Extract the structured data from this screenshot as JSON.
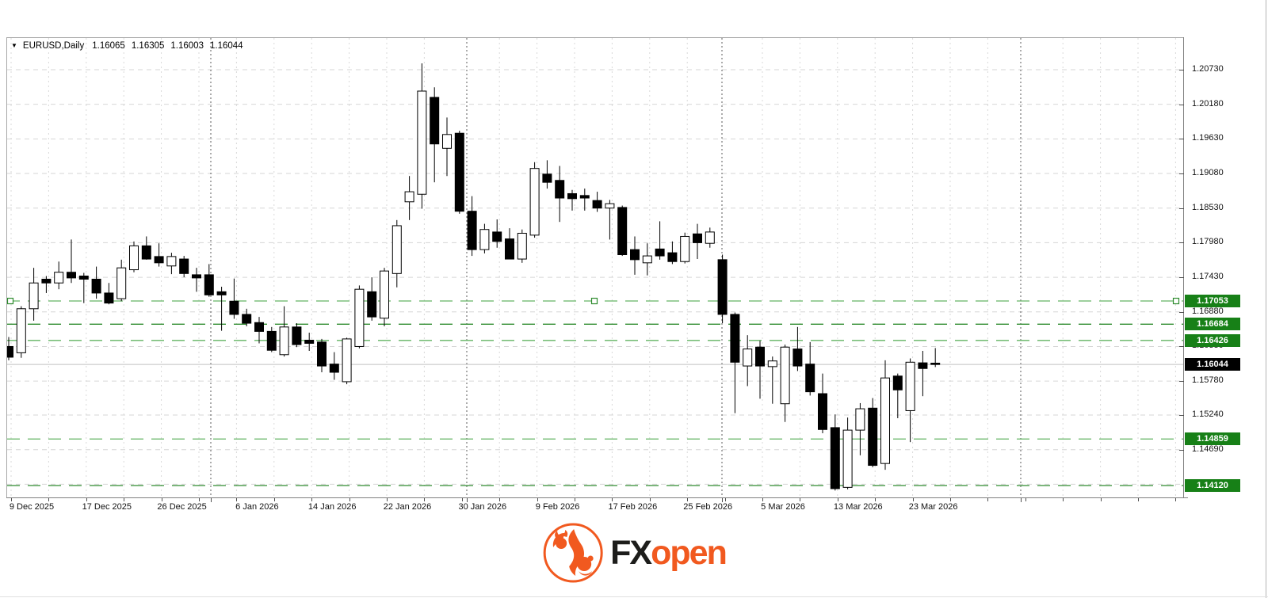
{
  "header": {
    "dropdown_icon": "▼",
    "symbol": "EURUSD,Daily",
    "open": "1.16065",
    "high": "1.16305",
    "low": "1.16003",
    "close": "1.16044"
  },
  "chart_data": {
    "type": "candlestick",
    "symbol": "EURUSD",
    "timeframe": "Daily",
    "title": "EURUSD,Daily",
    "grid": true,
    "ylim": [
      1.1393,
      1.2123
    ],
    "price_axis_ticks": [
      "1.20730",
      "1.20180",
      "1.19630",
      "1.19080",
      "1.18530",
      "1.17980",
      "1.17430",
      "1.16880",
      "1.16330",
      "1.15780",
      "1.15240",
      "1.14690"
    ],
    "date_axis_labels": [
      "9 Dec 2025",
      "17 Dec 2025",
      "26 Dec 2025",
      "6 Jan 2026",
      "14 Jan 2026",
      "22 Jan 2026",
      "30 Jan 2026",
      "9 Feb 2026",
      "17 Feb 2026",
      "25 Feb 2026",
      "5 Mar 2026",
      "13 Mar 2026",
      "23 Mar 2026"
    ],
    "horizontal_levels": [
      {
        "price": "1.17053",
        "style": "light",
        "selected": true
      },
      {
        "price": "1.16684",
        "style": "dark",
        "selected": false
      },
      {
        "price": "1.16426",
        "style": "light",
        "selected": false
      },
      {
        "price": "1.14859",
        "style": "light",
        "selected": false
      },
      {
        "price": "1.14120",
        "style": "dark",
        "selected": false
      }
    ],
    "current_price": "1.16044",
    "candles_ohlc": [
      [
        1.1633,
        1.1648,
        1.1611,
        1.1616
      ],
      [
        1.1623,
        1.1697,
        1.1615,
        1.1693
      ],
      [
        1.1693,
        1.1758,
        1.1674,
        1.1734
      ],
      [
        1.174,
        1.1745,
        1.1718,
        1.1734
      ],
      [
        1.1734,
        1.1768,
        1.1724,
        1.1751
      ],
      [
        1.1751,
        1.1803,
        1.1734,
        1.1742
      ],
      [
        1.1745,
        1.175,
        1.1702,
        1.174
      ],
      [
        1.174,
        1.176,
        1.1709,
        1.1718
      ],
      [
        1.1718,
        1.1734,
        1.17,
        1.1702
      ],
      [
        1.1709,
        1.1771,
        1.1705,
        1.1758
      ],
      [
        1.1755,
        1.18,
        1.1751,
        1.1793
      ],
      [
        1.1793,
        1.1808,
        1.1771,
        1.1772
      ],
      [
        1.1776,
        1.1797,
        1.176,
        1.1766
      ],
      [
        1.1761,
        1.1782,
        1.1748,
        1.1776
      ],
      [
        1.1772,
        1.1777,
        1.1743,
        1.1749
      ],
      [
        1.1747,
        1.1758,
        1.172,
        1.1742
      ],
      [
        1.1747,
        1.1764,
        1.1712,
        1.1715
      ],
      [
        1.172,
        1.1728,
        1.1658,
        1.1715
      ],
      [
        1.1705,
        1.1741,
        1.1677,
        1.1684
      ],
      [
        1.1684,
        1.1693,
        1.1665,
        1.167
      ],
      [
        1.1671,
        1.168,
        1.1638,
        1.1657
      ],
      [
        1.1657,
        1.1664,
        1.1624,
        1.1627
      ],
      [
        1.162,
        1.1697,
        1.1617,
        1.1664
      ],
      [
        1.1664,
        1.167,
        1.1632,
        1.1636
      ],
      [
        1.1643,
        1.1655,
        1.1626,
        1.1638
      ],
      [
        1.164,
        1.1645,
        1.1592,
        1.1602
      ],
      [
        1.1605,
        1.1624,
        1.158,
        1.1592
      ],
      [
        1.1577,
        1.1647,
        1.1573,
        1.1645
      ],
      [
        1.1633,
        1.173,
        1.163,
        1.1724
      ],
      [
        1.172,
        1.1743,
        1.1674,
        1.168
      ],
      [
        1.1678,
        1.1758,
        1.1665,
        1.1753
      ],
      [
        1.1749,
        1.1834,
        1.1727,
        1.1825
      ],
      [
        1.1863,
        1.1904,
        1.1834,
        1.1879
      ],
      [
        1.1875,
        1.2083,
        1.1852,
        1.2039
      ],
      [
        1.2029,
        1.2045,
        1.1894,
        1.1955
      ],
      [
        1.1948,
        1.1997,
        1.1904,
        1.197
      ],
      [
        1.1972,
        1.1976,
        1.1844,
        1.1848
      ],
      [
        1.1848,
        1.1872,
        1.1777,
        1.1787
      ],
      [
        1.1787,
        1.1828,
        1.1781,
        1.1819
      ],
      [
        1.1815,
        1.1835,
        1.179,
        1.18
      ],
      [
        1.1804,
        1.1821,
        1.1772,
        1.1772
      ],
      [
        1.1772,
        1.1819,
        1.1766,
        1.1813
      ],
      [
        1.181,
        1.1926,
        1.1806,
        1.1916
      ],
      [
        1.1907,
        1.1929,
        1.1884,
        1.1894
      ],
      [
        1.1897,
        1.192,
        1.1831,
        1.1869
      ],
      [
        1.1876,
        1.1882,
        1.1849,
        1.1868
      ],
      [
        1.1873,
        1.1884,
        1.1849,
        1.1869
      ],
      [
        1.1865,
        1.1879,
        1.1847,
        1.1853
      ],
      [
        1.1853,
        1.1866,
        1.1803,
        1.186
      ],
      [
        1.1854,
        1.1857,
        1.1777,
        1.1779
      ],
      [
        1.1787,
        1.1808,
        1.1747,
        1.1771
      ],
      [
        1.1766,
        1.1797,
        1.1746,
        1.1777
      ],
      [
        1.1788,
        1.1832,
        1.1771,
        1.1777
      ],
      [
        1.1782,
        1.18,
        1.1764,
        1.1768
      ],
      [
        1.1768,
        1.1814,
        1.1765,
        1.1808
      ],
      [
        1.1812,
        1.1828,
        1.1772,
        1.1798
      ],
      [
        1.1797,
        1.1822,
        1.179,
        1.1815
      ],
      [
        1.1771,
        1.1779,
        1.167,
        1.1684
      ],
      [
        1.1684,
        1.1687,
        1.1527,
        1.1608
      ],
      [
        1.1602,
        1.1651,
        1.157,
        1.1629
      ],
      [
        1.1632,
        1.1642,
        1.155,
        1.1602
      ],
      [
        1.1601,
        1.1617,
        1.1542,
        1.161
      ],
      [
        1.1542,
        1.1636,
        1.1513,
        1.1632
      ],
      [
        1.1629,
        1.1664,
        1.1594,
        1.1602
      ],
      [
        1.1605,
        1.164,
        1.1555,
        1.1561
      ],
      [
        1.1558,
        1.159,
        1.1495,
        1.1501
      ],
      [
        1.1504,
        1.1525,
        1.1404,
        1.1407
      ],
      [
        1.1409,
        1.152,
        1.1406,
        1.15
      ],
      [
        1.15,
        1.1543,
        1.146,
        1.1534
      ],
      [
        1.1535,
        1.1551,
        1.1441,
        1.1444
      ],
      [
        1.1447,
        1.1611,
        1.1437,
        1.1583
      ],
      [
        1.1586,
        1.159,
        1.1519,
        1.1564
      ],
      [
        1.1531,
        1.1614,
        1.1481,
        1.1608
      ],
      [
        1.1607,
        1.1626,
        1.1554,
        1.1598
      ],
      [
        1.16065,
        1.16305,
        1.16003,
        1.16044
      ]
    ]
  },
  "colors": {
    "level_green_dark": "#2e8b2e",
    "level_green_light": "#63b463",
    "badge_green": "#178017",
    "badge_black": "#000000",
    "candle_up_fill": "#ffffff",
    "candle_down_fill": "#000000",
    "candle_outline": "#000000",
    "grid_h": "#d6d6d6",
    "grid_v": "#d9d9d9",
    "separator": "#5a5a5a",
    "axis_border": "#808080",
    "current_price_line": "#c0c0c0",
    "logo_orange": "#f1591f",
    "logo_dark": "#1d1d1b"
  },
  "logo": {
    "text_fx": "FX",
    "text_open": "open"
  }
}
